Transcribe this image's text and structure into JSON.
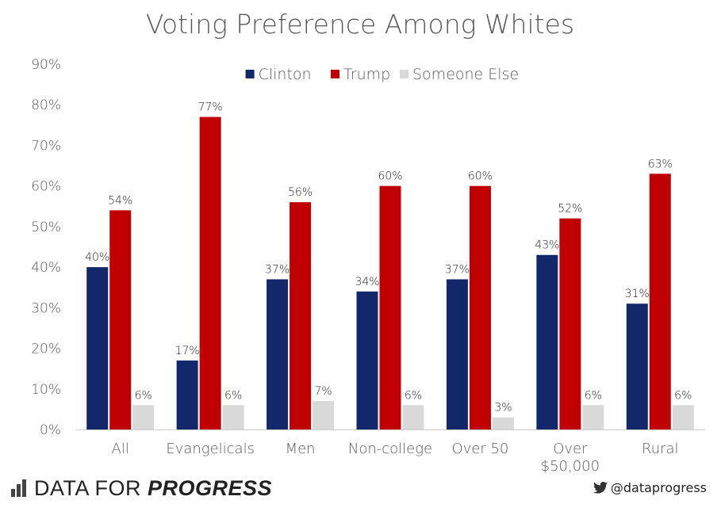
{
  "chart_data": {
    "type": "bar",
    "title": "Voting Preference Among Whites",
    "categories": [
      "All",
      "Evangelicals",
      "Men",
      "Non-college",
      "Over 50",
      "Over $50,000",
      "Rural"
    ],
    "category_lines": [
      [
        "All"
      ],
      [
        "Evangelicals"
      ],
      [
        "Men"
      ],
      [
        "Non-college"
      ],
      [
        "Over 50"
      ],
      [
        "Over",
        "$50,000"
      ],
      [
        "Rural"
      ]
    ],
    "series": [
      {
        "name": "Clinton",
        "color": "#13286A",
        "values": [
          40,
          17,
          37,
          34,
          37,
          43,
          31
        ],
        "labels": [
          "40%",
          "17%",
          "37%",
          "34%",
          "37%",
          "43%",
          "31%"
        ]
      },
      {
        "name": "Trump",
        "color": "#C00000",
        "values": [
          54,
          77,
          56,
          60,
          60,
          52,
          63
        ],
        "labels": [
          "54%",
          "77%",
          "56%",
          "60%",
          "60%",
          "52%",
          "63%"
        ]
      },
      {
        "name": "Someone Else",
        "color": "#D9D9D9",
        "values": [
          6,
          6,
          7,
          6,
          3,
          6,
          6
        ],
        "labels": [
          "6%",
          "6%",
          "7%",
          "6%",
          "3%",
          "6%",
          "6%"
        ]
      }
    ],
    "ylim": [
      0,
      90
    ],
    "yticks": [
      0,
      10,
      20,
      30,
      40,
      50,
      60,
      70,
      80,
      90
    ],
    "ytick_labels": [
      "0%",
      "10%",
      "20%",
      "30%",
      "40%",
      "50%",
      "60%",
      "70%",
      "80%",
      "90%"
    ],
    "legend_position": "top-center",
    "grid": false
  },
  "footer": {
    "brand_regular": "DATA FOR ",
    "brand_bold": "PROGRESS",
    "handle": "@dataprogress"
  }
}
